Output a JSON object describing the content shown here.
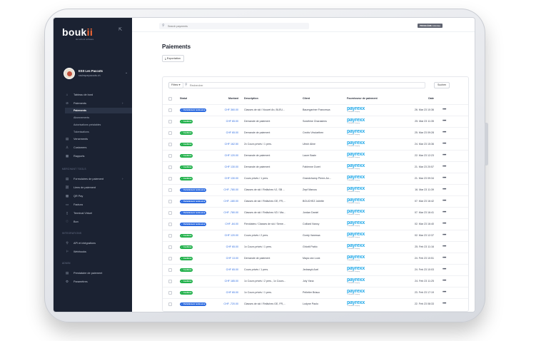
{
  "app": {
    "logo_main": "bouk",
    "logo_accent": "ii",
    "logo_sub": "ski school software"
  },
  "sidebar": {
    "school_name": "ESS Les Paccots",
    "school_email": "ssslesparpaccots.ch",
    "items": [
      {
        "icon": "home-icon",
        "glyph": "⌂",
        "label": "Tableau de bord",
        "top": 104
      },
      {
        "icon": "payments-icon",
        "glyph": "⊘",
        "label": "Paiements",
        "top": 116,
        "expand": true
      }
    ],
    "subitems": [
      {
        "label": "Paiements",
        "active": true,
        "top": 126
      },
      {
        "label": "Abonnements",
        "active": false,
        "top": 136
      },
      {
        "label": "Autorisations préalables",
        "active": false,
        "top": 146
      },
      {
        "label": "Tokenisations",
        "active": false,
        "top": 156
      }
    ],
    "items2": [
      {
        "icon": "transfer-icon",
        "glyph": "▤",
        "label": "Versements",
        "top": 166
      },
      {
        "icon": "customers-icon",
        "glyph": "♙",
        "label": "Customers",
        "top": 178
      },
      {
        "icon": "reports-icon",
        "glyph": "▦",
        "label": "Rapports",
        "top": 190
      }
    ],
    "section_merchant": "Merchant Tools",
    "merchant_items": [
      {
        "icon": "forms-icon",
        "glyph": "▤",
        "label": "Formulaires de paiement",
        "top": 222,
        "expand": true
      },
      {
        "icon": "link-icon",
        "glyph": "⛓",
        "label": "Liens de paiement",
        "top": 234
      },
      {
        "icon": "qr-icon",
        "glyph": "▩",
        "label": "QR Pay",
        "top": 246
      },
      {
        "icon": "invoice-icon",
        "glyph": "▭",
        "label": "Factura",
        "top": 258
      },
      {
        "icon": "terminal-icon",
        "glyph": "▯",
        "label": "Terminal Virtuel",
        "top": 270
      },
      {
        "icon": "gift-icon",
        "glyph": "♡",
        "label": "Bon",
        "top": 282
      }
    ],
    "section_integrations": "Integrations",
    "integration_items": [
      {
        "icon": "api-icon",
        "glyph": "⚲",
        "label": "API et intégrations",
        "top": 312
      },
      {
        "icon": "webhooks-icon",
        "glyph": "⚐",
        "label": "Webhooks",
        "top": 324
      }
    ],
    "section_admin": "Admin",
    "admin_items": [
      {
        "icon": "provider-icon",
        "glyph": "▤",
        "label": "Prestataire de paiement",
        "top": 354
      },
      {
        "icon": "settings-icon",
        "glyph": "⚙",
        "label": "Paramètres",
        "top": 366
      }
    ]
  },
  "topbar": {
    "search_placeholder": "Search payments",
    "badge": "PROBLÈME License"
  },
  "page": {
    "title": "Paiements",
    "export_label": "Exportation"
  },
  "table": {
    "filter_label": "Filtrez ▾",
    "search_placeholder": "Rechercher",
    "find_label": "Suchen",
    "headers": {
      "status": "Statut",
      "amount": "Montant",
      "description": "Description",
      "client": "Client",
      "provider": "Fournisseur de paiement",
      "date": "Date"
    },
    "provider_name": "payrexx",
    "provider_sub": "a Worldline Company",
    "rows": [
      {
        "status": "Partiellement remboursé",
        "kind": "blue",
        "amount": "CHF 360.00",
        "description": "Classes de ski / Nouvel An, BLEU...",
        "client": "Baumgartner Francesca",
        "date": "26. Mar 23 10:36"
      },
      {
        "status": "Confirmé",
        "kind": "green",
        "amount": "CHF 65.00",
        "description": "Demande de paiement",
        "client": "Sowthine Charasiens",
        "date": "25. Mar 23 11:35"
      },
      {
        "status": "Confirmé",
        "kind": "green",
        "amount": "CHF 65.00",
        "description": "Demande de paiement",
        "client": "Cedric Vinciarthen",
        "date": "25. Mar 23 09:28"
      },
      {
        "status": "Confirmé",
        "kind": "green",
        "amount": "CHF 162.50",
        "description": "2x Cours privés / 1 pers.",
        "client": "Ulrich Aline",
        "date": "24. Mar 23 15:36"
      },
      {
        "status": "Confirmé",
        "kind": "green",
        "amount": "CHF 120.00",
        "description": "Demande de paiement",
        "client": "Laure Bazin",
        "date": "22. Mar 23 12:23"
      },
      {
        "status": "Confirmé",
        "kind": "green",
        "amount": "CHF 130.00",
        "description": "Demande de paiement",
        "client": "Fabienne Duret",
        "date": "21. Mar 23 20:57"
      },
      {
        "status": "Confirmé",
        "kind": "green",
        "amount": "CHF 130.00",
        "description": "Cours privés / 1 pers.",
        "client": "Grandchamp Pierre-An...",
        "date": "21. Mar 23 09:34"
      },
      {
        "status": "Partiellement remboursé",
        "kind": "blue",
        "amount": "CHF -780.00",
        "description": "Classes de ski / Relâches VJ, SB ...",
        "client": "Zepf Marcus",
        "date": "16. Mar 23 11:39"
      },
      {
        "status": "Partiellement remboursé",
        "kind": "blue",
        "amount": "CHF -180.00",
        "description": "Classes de ski / Relâches GE, FR,...",
        "client": "BOUCHEZ Juliette",
        "date": "07. Mar 23 16:42"
      },
      {
        "status": "Partiellement remboursé",
        "kind": "blue",
        "amount": "CHF -780.00",
        "description": "Classes de ski / Relâches VD / Ma...",
        "client": "Jordan Daniel",
        "date": "07. Mar 23 16:41"
      },
      {
        "status": "Partiellement remboursé",
        "kind": "blue",
        "amount": "CHF -84.00",
        "description": "Flexidates / Classes de ski / Seme...",
        "client": "Colliard Nancy",
        "date": "02. Mar 23 16:40"
      },
      {
        "status": "Confirmé",
        "kind": "green",
        "amount": "CHF 120.00",
        "description": "Cours privés / 2 pers.",
        "client": "Gordy Vanessa",
        "date": "02. Mar 23 12:37"
      },
      {
        "status": "Confirmé",
        "kind": "green",
        "amount": "CHF 65.00",
        "description": "1x Cours privés / 1 pers.",
        "client": "Ghiotti Pablo",
        "date": "25. Feb 23 11:16"
      },
      {
        "status": "Confirmé",
        "kind": "green",
        "amount": "CHF 13.00",
        "description": "Demande de paiement",
        "client": "Maya van Look",
        "date": "24. Feb 23 10:51"
      },
      {
        "status": "Confirmé",
        "kind": "green",
        "amount": "CHF 65.00",
        "description": "Cours privés / 1 pers.",
        "client": "Jedrasyk Axel",
        "date": "24. Feb 23 10:03"
      },
      {
        "status": "Confirmé",
        "kind": "green",
        "amount": "CHF 185.00",
        "description": "1x Cours privés / 2 pers., 1x Cours...",
        "client": "Joly Yana",
        "date": "24. Feb 23 11:25"
      },
      {
        "status": "Confirmé",
        "kind": "green",
        "amount": "CHF 65.00",
        "description": "1x Cours privés / 1 pers.",
        "client": "Pelletier Briauc",
        "date": "23. Feb 23 17:19"
      },
      {
        "status": "Partiellement remboursé",
        "kind": "blue",
        "amount": "CHF -720.00",
        "description": "Classes de ski / Relâches GE, FR,...",
        "client": "Lodyne Paolo",
        "date": "22. Feb 23 08:33"
      }
    ]
  }
}
